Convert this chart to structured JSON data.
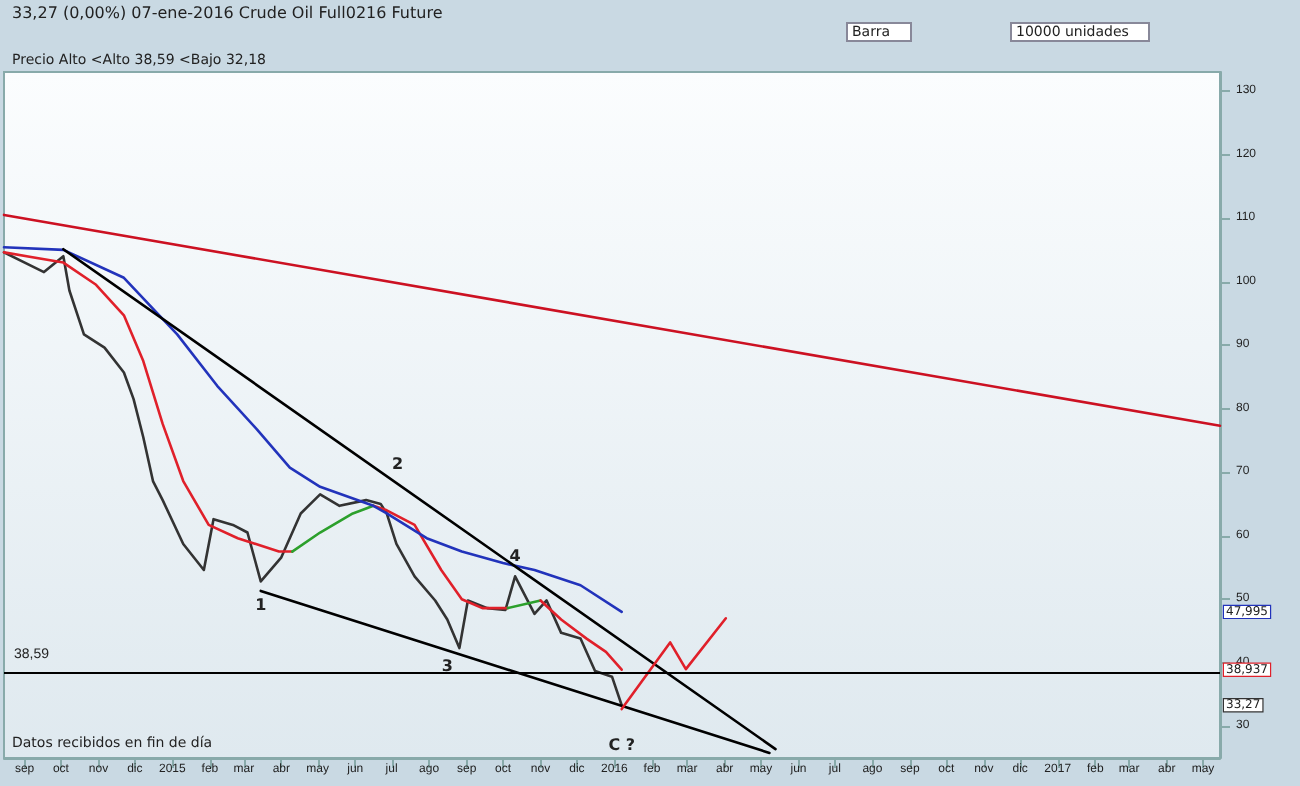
{
  "chart_data": {
    "type": "line",
    "title": "33,27 (0,00%) 07-ene-2016 Crude Oil Full0216 Future",
    "subtitle": "Precio  Alto <Alto 38,59 <Bajo 32,18",
    "xlim": [
      "2014-08-15",
      "2017-05-15"
    ],
    "ylim": [
      25,
      133
    ],
    "xticks": [
      {
        "value": "2014-09-01",
        "label": "sep"
      },
      {
        "value": "2014-10-01",
        "label": "oct"
      },
      {
        "value": "2014-11-01",
        "label": "nov"
      },
      {
        "value": "2014-12-01",
        "label": "dic"
      },
      {
        "value": "2015-01-01",
        "label": "2015"
      },
      {
        "value": "2015-02-01",
        "label": "feb"
      },
      {
        "value": "2015-03-01",
        "label": "mar"
      },
      {
        "value": "2015-04-01",
        "label": "abr"
      },
      {
        "value": "2015-05-01",
        "label": "may"
      },
      {
        "value": "2015-06-01",
        "label": "jun"
      },
      {
        "value": "2015-07-01",
        "label": "jul"
      },
      {
        "value": "2015-08-01",
        "label": "ago"
      },
      {
        "value": "2015-09-01",
        "label": "sep"
      },
      {
        "value": "2015-10-01",
        "label": "oct"
      },
      {
        "value": "2015-11-01",
        "label": "nov"
      },
      {
        "value": "2015-12-01",
        "label": "dic"
      },
      {
        "value": "2016-01-01",
        "label": "2016"
      },
      {
        "value": "2016-02-01",
        "label": "feb"
      },
      {
        "value": "2016-03-01",
        "label": "mar"
      },
      {
        "value": "2016-04-01",
        "label": "abr"
      },
      {
        "value": "2016-05-01",
        "label": "may"
      },
      {
        "value": "2016-06-01",
        "label": "jun"
      },
      {
        "value": "2016-07-01",
        "label": "jul"
      },
      {
        "value": "2016-08-01",
        "label": "ago"
      },
      {
        "value": "2016-09-01",
        "label": "sep"
      },
      {
        "value": "2016-10-01",
        "label": "oct"
      },
      {
        "value": "2016-11-01",
        "label": "nov"
      },
      {
        "value": "2016-12-01",
        "label": "dic"
      },
      {
        "value": "2017-01-01",
        "label": "2017"
      },
      {
        "value": "2017-02-01",
        "label": "feb"
      },
      {
        "value": "2017-03-01",
        "label": "mar"
      },
      {
        "value": "2017-04-01",
        "label": "abr"
      },
      {
        "value": "2017-05-01",
        "label": "may"
      }
    ],
    "yticks": [
      30,
      40,
      50,
      60,
      70,
      80,
      90,
      100,
      110,
      120,
      130
    ],
    "grid": false,
    "marker": "none",
    "series": [
      {
        "color": "#333333",
        "x": [
          "2014-08-15",
          "2014-09-17",
          "2014-10-03",
          "2014-10-08",
          "2014-10-20",
          "2014-11-06",
          "2014-11-22",
          "2014-11-30",
          "2014-12-08",
          "2014-12-16",
          "2014-12-24",
          "2015-01-10",
          "2015-01-27",
          "2015-02-04",
          "2015-02-20",
          "2015-03-04",
          "2015-03-15",
          "2015-04-01",
          "2015-04-17",
          "2015-05-03",
          "2015-05-19",
          "2015-06-10",
          "2015-06-22",
          "2015-06-27",
          "2015-07-05",
          "2015-07-20",
          "2015-08-06",
          "2015-08-16",
          "2015-08-26",
          "2015-09-02",
          "2015-09-18",
          "2015-10-03",
          "2015-10-11",
          "2015-10-27",
          "2015-11-06",
          "2015-11-18",
          "2015-12-04",
          "2015-12-16",
          "2015-12-30",
          "2016-01-07"
        ],
        "values": [
          104.6,
          101.5,
          104,
          98.6,
          91.7,
          89.6,
          85.7,
          81.5,
          75.5,
          68.6,
          65.6,
          58.7,
          54.6,
          62.6,
          61.7,
          60.5,
          52.8,
          56.6,
          63.5,
          66.5,
          64.7,
          65.6,
          65,
          63.5,
          58.7,
          53.6,
          49.8,
          46.8,
          42.3,
          49.8,
          48.6,
          48.3,
          53.6,
          47.7,
          49.8,
          44.7,
          43.8,
          38.7,
          37.8,
          33.3
        ]
      },
      {
        "color": "#e0202a",
        "x": [
          "2014-08-15",
          "2014-10-03",
          "2014-10-30",
          "2014-11-22",
          "2014-12-08",
          "2014-12-24",
          "2015-01-10",
          "2015-01-31",
          "2015-02-24",
          "2015-03-30",
          "2015-04-10"
        ],
        "values": [
          104.6,
          103,
          99.5,
          94.7,
          87.5,
          77.6,
          68.6,
          61.7,
          59.6,
          57.5,
          57.5
        ]
      },
      {
        "color": "#2ca02c",
        "x": [
          "2015-04-10",
          "2015-05-03",
          "2015-05-30",
          "2015-06-16"
        ],
        "values": [
          57.5,
          60.5,
          63.5,
          64.7
        ]
      },
      {
        "color": "#e0202a",
        "x": [
          "2015-06-16",
          "2015-06-27",
          "2015-07-20",
          "2015-08-11",
          "2015-08-28",
          "2015-09-14",
          "2015-10-05"
        ],
        "values": [
          64.7,
          64,
          61.7,
          54.6,
          50,
          48.6,
          48.6
        ]
      },
      {
        "color": "#2ca02c",
        "x": [
          "2015-10-05",
          "2015-11-01"
        ],
        "values": [
          48.6,
          49.8
        ]
      },
      {
        "color": "#e0202a",
        "x": [
          "2015-11-01",
          "2015-11-18",
          "2015-12-09",
          "2015-12-25",
          "2016-01-07"
        ],
        "values": [
          49.8,
          46.8,
          43.8,
          41.7,
          38.9
        ]
      },
      {
        "color": "#2233bb",
        "x": [
          "2014-08-15",
          "2014-10-03",
          "2014-11-22",
          "2015-01-05",
          "2015-02-07",
          "2015-03-12",
          "2015-04-08",
          "2015-05-03",
          "2015-06-16",
          "2015-06-27",
          "2015-07-30",
          "2015-08-28",
          "2015-10-01",
          "2015-10-27",
          "2015-12-04",
          "2016-01-07"
        ],
        "values": [
          105.4,
          105,
          100.6,
          91.7,
          83.6,
          76.7,
          70.7,
          67.7,
          64.7,
          63.5,
          59.6,
          57.5,
          55.7,
          54.6,
          52.2,
          48
        ]
      },
      {
        "color": "#000000",
        "x": [
          "2014-10-03",
          "2016-05-13"
        ],
        "values": [
          105.1,
          26.4
        ]
      },
      {
        "color": "#000000",
        "x": [
          "2015-03-15",
          "2016-05-08"
        ],
        "values": [
          51.3,
          25.8
        ]
      },
      {
        "color": "#cc1122",
        "x": [
          "2014-08-15",
          "2017-05-15"
        ],
        "values": [
          110.5,
          77.3
        ]
      },
      {
        "color": "#e0202a",
        "x": [
          "2016-01-07",
          "2016-02-16",
          "2016-02-29",
          "2016-04-02"
        ],
        "values": [
          32.7,
          43.2,
          39,
          47
        ]
      }
    ],
    "ref_lines": [
      {
        "axis": "y",
        "value": 38.59,
        "label": "38,59",
        "color": "#000000"
      }
    ],
    "annotations": [
      {
        "text": "1",
        "x": "2015-03-15",
        "y": 52.8
      },
      {
        "text": "2",
        "x": "2015-07-06",
        "y": 68.1
      },
      {
        "text": "3",
        "x": "2015-08-16",
        "y": 42
      },
      {
        "text": "4",
        "x": "2015-10-11",
        "y": 53.6
      },
      {
        "text": "C ?",
        "x": "2016-01-07",
        "y": 33.3
      },
      "Datos recibidos en fin de día",
      "10000 unidades",
      "Barra",
      "47,995",
      "38,937",
      "33,27"
    ]
  }
}
